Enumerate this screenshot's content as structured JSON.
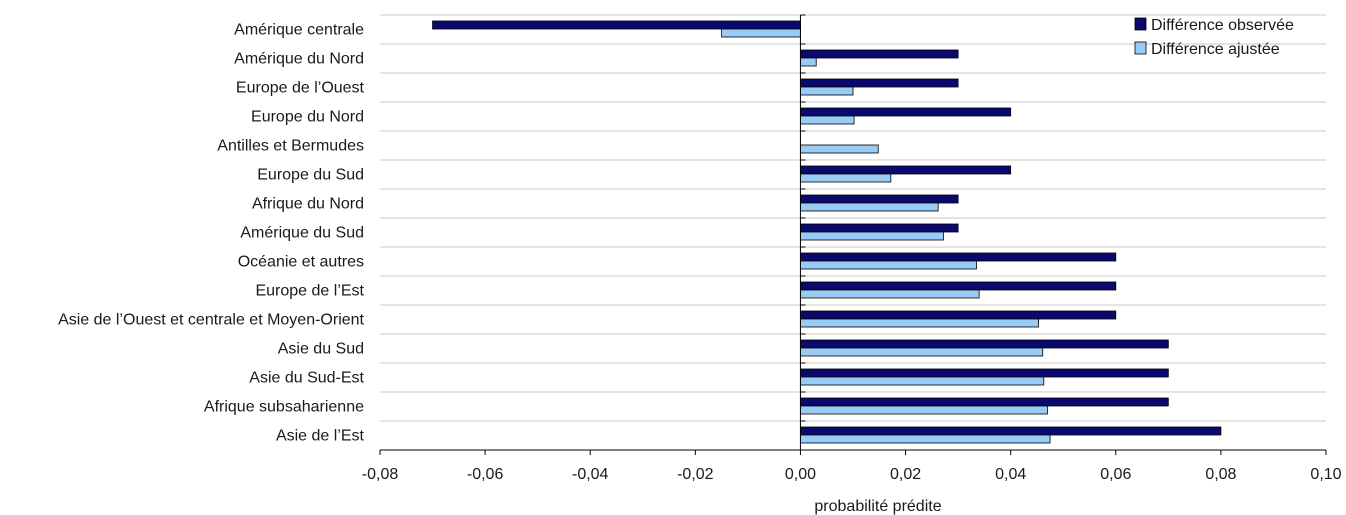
{
  "colors": {
    "observed": "#0a0a6e",
    "adjusted": "#99ccf5"
  },
  "chart_data": {
    "type": "bar",
    "orientation": "horizontal",
    "categories": [
      "Amérique centrale",
      "Amérique du Nord",
      "Europe de l’Ouest",
      "Europe du Nord",
      "Antilles et Bermudes",
      "Europe du Sud",
      "Afrique du Nord",
      "Amérique du Sud",
      "Océanie et autres",
      "Europe de l’Est",
      "Asie de l’Ouest et centrale et Moyen-Orient",
      "Asie du Sud",
      "Asie du Sud-Est",
      "Afrique subsaharienne",
      "Asie de l’Est"
    ],
    "series": [
      {
        "name": "Différence observée",
        "values": [
          -0.07,
          0.03,
          0.03,
          0.04,
          0.0,
          0.04,
          0.03,
          0.03,
          0.06,
          0.06,
          0.06,
          0.07,
          0.07,
          0.07,
          0.08
        ]
      },
      {
        "name": "Différence ajustée",
        "values": [
          -0.015,
          0.003,
          0.01,
          0.0102,
          0.0148,
          0.0172,
          0.0262,
          0.0272,
          0.0335,
          0.034,
          0.0453,
          0.0461,
          0.0463,
          0.047,
          0.0475
        ]
      }
    ],
    "xlabel": "probabilité prédite",
    "xlim": [
      -0.08,
      0.1
    ],
    "xticks": [
      -0.08,
      -0.06,
      -0.04,
      -0.02,
      0.0,
      0.02,
      0.04,
      0.06,
      0.08,
      0.1
    ],
    "xtick_labels": [
      "-0,08",
      "-0,06",
      "-0,04",
      "-0,02",
      "0,00",
      "0,02",
      "0,04",
      "0,06",
      "0,08",
      "0,10"
    ],
    "grid": "horizontal",
    "legend_position": "top-right"
  }
}
